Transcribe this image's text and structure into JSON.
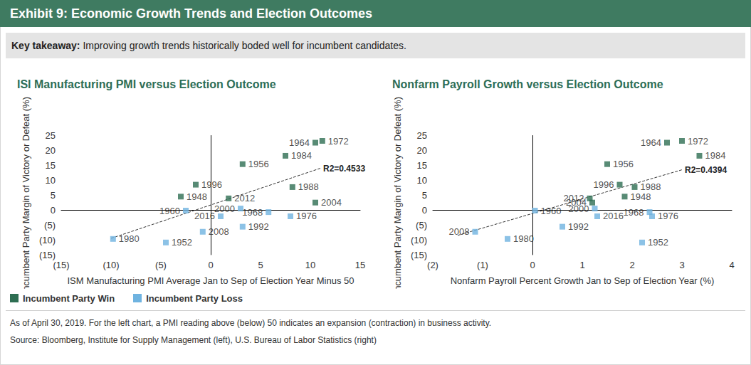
{
  "header": {
    "title": "Exhibit 9: Economic Growth Trends and Election Outcomes",
    "key_takeaway_label": "Key takeaway:",
    "key_takeaway": "Improving growth trends historically boded well for incumbent candidates."
  },
  "notes": [
    "As of April 30, 2019. For the left chart, a PMI reading above (below) 50 indicates an expansion (contraction) in business activity.",
    "Source: Bloomberg, Institute for Supply Management (left), U.S. Bureau of Labor Statistics (right)"
  ],
  "chart_data": [
    {
      "type": "scatter",
      "title": "ISI Manufacturing PMI versus Election Outcome",
      "x_label": "ISM Manufacturing PMI Average Jan to Sep of Election Year Minus 50",
      "y_label": "Incumbent Party Margin of Victory or Defeat (%)",
      "xlim": [
        -15,
        15
      ],
      "xticks": [
        {
          "value": -15,
          "label": "(15)"
        },
        {
          "value": -10,
          "label": "(10)"
        },
        {
          "value": -5,
          "label": "(5)"
        },
        0,
        5,
        10,
        15
      ],
      "ylim": [
        -15,
        25
      ],
      "yticks": [
        {
          "value": -15,
          "label": "(15)"
        },
        {
          "value": -10,
          "label": "(10)"
        },
        {
          "value": -5,
          "label": "(5)"
        },
        0,
        5,
        10,
        15,
        20,
        25
      ],
      "grid": false,
      "legend": "bottom",
      "marker": "square",
      "series": [
        {
          "name": "Incumbent Party Win",
          "color": "#2e6e52",
          "labels": [
            "1964",
            "1972",
            "1984",
            "1956",
            "1996",
            "1988",
            "2012",
            "1948",
            "2004"
          ],
          "x": [
            10.5,
            11.2,
            7.5,
            3.2,
            -1.5,
            8.2,
            1.8,
            -3.0,
            10.5
          ],
          "values": [
            22.6,
            23.2,
            18.2,
            15.4,
            8.5,
            7.7,
            3.9,
            4.5,
            2.5
          ]
        },
        {
          "name": "Incumbent Party Loss",
          "color": "#6fb3e0",
          "labels": [
            "2000",
            "1960",
            "2016",
            "1968",
            "1976",
            "1992",
            "2008",
            "1952",
            "1980"
          ],
          "x": [
            3.0,
            -2.5,
            1.0,
            5.8,
            8.0,
            3.2,
            -0.8,
            -4.5,
            -9.8
          ],
          "values": [
            0.5,
            -0.2,
            -2.1,
            -0.7,
            -2.1,
            -5.6,
            -7.3,
            -10.9,
            -9.7
          ]
        }
      ],
      "trendline": {
        "label": "R2=0.4533",
        "line_style": "dashed",
        "x": [
          -10,
          11
        ],
        "values": [
          -9.5,
          14
        ]
      }
    },
    {
      "type": "scatter",
      "title": "Nonfarm Payroll Growth versus Election Outcome",
      "x_label": "Nonfarm Payroll Percent Growth Jan to Sep of Election Year (%)",
      "y_label": "Incumbent Party Margin of Victory or Defeat (%)",
      "xlim": [
        -2,
        4
      ],
      "xticks": [
        {
          "value": -2,
          "label": "(2)"
        },
        {
          "value": -1,
          "label": "(1)"
        },
        0,
        1,
        2,
        3,
        4
      ],
      "ylim": [
        -15,
        25
      ],
      "yticks": [
        {
          "value": -15,
          "label": "(15)"
        },
        {
          "value": -10,
          "label": "(10)"
        },
        {
          "value": -5,
          "label": "(5)"
        },
        0,
        5,
        10,
        15,
        20,
        25
      ],
      "grid": false,
      "marker": "square",
      "series": [
        {
          "name": "Incumbent Party Win",
          "color": "#2e6e52",
          "labels": [
            "1964",
            "1972",
            "1984",
            "1956",
            "1996",
            "1988",
            "2012",
            "2004",
            "1948"
          ],
          "x": [
            2.7,
            3.0,
            3.35,
            1.5,
            1.75,
            2.05,
            1.15,
            1.2,
            1.85
          ],
          "values": [
            22.6,
            23.2,
            18.2,
            15.4,
            8.5,
            7.7,
            3.9,
            2.5,
            4.5
          ]
        },
        {
          "name": "Incumbent Party Loss",
          "color": "#6fb3e0",
          "labels": [
            "2000",
            "1960",
            "2016",
            "1968",
            "1976",
            "1992",
            "2008",
            "1980",
            "1952"
          ],
          "x": [
            1.25,
            0.05,
            1.3,
            2.35,
            2.4,
            0.6,
            -1.15,
            -0.5,
            2.2
          ],
          "values": [
            0.5,
            -0.2,
            -2.1,
            -0.7,
            -2.1,
            -5.6,
            -7.3,
            -9.7,
            -10.9
          ]
        }
      ],
      "trendline": {
        "label": "R2=0.4394",
        "line_style": "dashed",
        "x": [
          -1.5,
          3.0
        ],
        "values": [
          -8.5,
          13.5
        ]
      }
    }
  ]
}
